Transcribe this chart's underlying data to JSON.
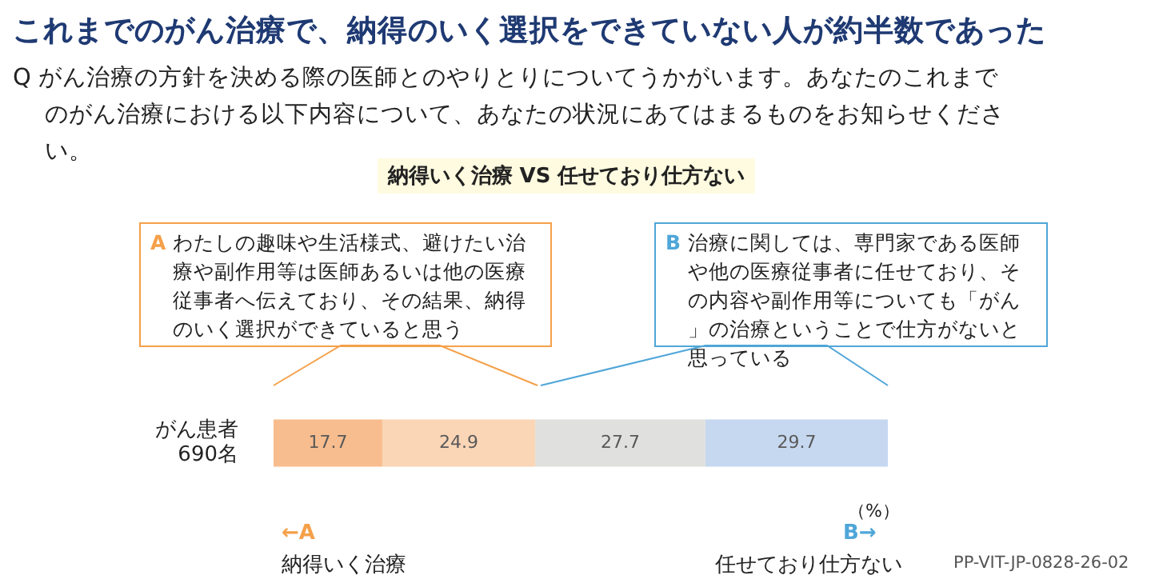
{
  "chart_data": {
    "type": "bar",
    "orientation": "horizontal",
    "stacked": true,
    "title": "これまでのがん治療で、納得のいく選択をできていない人が約半数であった",
    "subtitle": "Q がん治療の方針を決める際の医師とのやりとりについてうかがいます。あなたのこれまでのがん治療における以下内容について、あなたの状況にあてはまるものをお知らせください。",
    "categories": [
      "がん患者\n690名"
    ],
    "series": [
      {
        "color": "#f8bd8e",
        "values": [
          17.7
        ]
      },
      {
        "color": "#fad5b6",
        "values": [
          24.9
        ]
      },
      {
        "color": "#e0e0de",
        "values": [
          27.7
        ]
      },
      {
        "color": "#c6d8f0",
        "values": [
          29.7
        ]
      }
    ],
    "tick_labels": "y",
    "legend": false,
    "data_labels": true,
    "annotations": [
      "納得いく治療 VS 任せており仕方ない",
      "A わたしの趣味や生活様式、避けたい治療や副作用等は医師あるいは他の医療従事者へ伝えており、その結果、納得のいく選択ができていると思う",
      "B 治療に関しては、専門家である医師や他の医療従事者に任せており、その内容や副作用等についても「がん」の治療ということで仕方がないと思っている",
      "（%）",
      "←A",
      "納得いく治療",
      "B→",
      "任せており仕方ない",
      "PP-VIT-JP-0828-26-02"
    ]
  }
}
